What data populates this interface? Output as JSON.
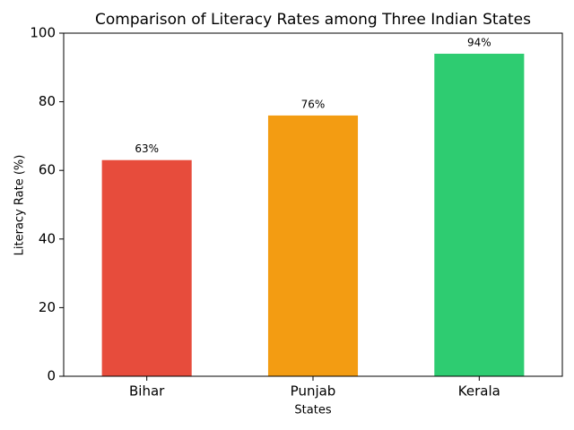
{
  "chart_data": {
    "type": "bar",
    "title": "Comparison of Literacy Rates among Three Indian States",
    "x_label": "States",
    "y_label": "Literacy Rate (%)",
    "categories": [
      "Bihar",
      "Punjab",
      "Kerala"
    ],
    "values": [
      63,
      76,
      94
    ],
    "value_labels": [
      "63%",
      "76%",
      "94%"
    ],
    "colors": [
      "#e74c3c",
      "#f39c12",
      "#2ecc71"
    ],
    "ylim": [
      0,
      100
    ],
    "yticks": [
      0,
      20,
      40,
      60,
      80,
      100
    ],
    "grid": false
  }
}
